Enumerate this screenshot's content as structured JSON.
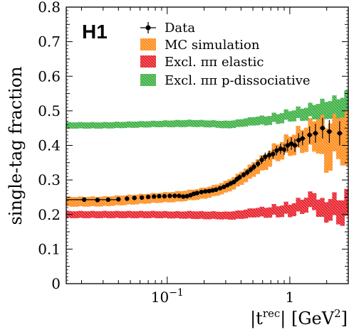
{
  "chart_data": {
    "type": "scatter",
    "title": "H1",
    "xlabel_parts": [
      "|t",
      "rec",
      "| [GeV",
      "2",
      "]"
    ],
    "ylabel": "single-tag fraction",
    "xscale": "log",
    "xlim": [
      0.015,
      3.0
    ],
    "ylim": [
      0,
      0.8
    ],
    "yticks": [
      "0",
      "0.1",
      "0.2",
      "0.3",
      "0.4",
      "0.5",
      "0.6",
      "0.7",
      "0.8"
    ],
    "xticks": [
      {
        "value": 0.1,
        "base": "10",
        "exp": "−1"
      },
      {
        "value": 1.0,
        "base": "1",
        "exp": ""
      }
    ],
    "grid": false,
    "legend_position": "top-right",
    "legend": [
      {
        "label": "Data",
        "kind": "marker",
        "color": "#000000"
      },
      {
        "label": "MC simulation",
        "kind": "band",
        "color": "#ff8c1a"
      },
      {
        "label": "Excl. ππ elastic",
        "kind": "band",
        "color": "#e8202a"
      },
      {
        "label": "Excl. ππ p-dissociative",
        "kind": "band",
        "color": "#3cb043"
      }
    ],
    "series": [
      {
        "name": "Data",
        "x": [
          0.021,
          0.027,
          0.033,
          0.04,
          0.047,
          0.054,
          0.062,
          0.07,
          0.078,
          0.086,
          0.095,
          0.105,
          0.115,
          0.125,
          0.135,
          0.145,
          0.155,
          0.165,
          0.175,
          0.19,
          0.205,
          0.22,
          0.235,
          0.25,
          0.27,
          0.29,
          0.31,
          0.33,
          0.35,
          0.37,
          0.39,
          0.42,
          0.45,
          0.48,
          0.51,
          0.55,
          0.59,
          0.63,
          0.68,
          0.73,
          0.78,
          0.84,
          0.9,
          0.96,
          1.03,
          1.1,
          1.18,
          1.27,
          1.45,
          1.62,
          1.85,
          2.1,
          2.55
        ],
        "y": [
          0.243,
          0.242,
          0.243,
          0.244,
          0.246,
          0.248,
          0.249,
          0.251,
          0.252,
          0.253,
          0.253,
          0.254,
          0.254,
          0.254,
          0.252,
          0.253,
          0.256,
          0.26,
          0.262,
          0.265,
          0.267,
          0.268,
          0.27,
          0.272,
          0.276,
          0.28,
          0.285,
          0.29,
          0.294,
          0.302,
          0.308,
          0.315,
          0.322,
          0.33,
          0.338,
          0.347,
          0.358,
          0.367,
          0.372,
          0.375,
          0.385,
          0.39,
          0.388,
          0.4,
          0.405,
          0.4,
          0.415,
          0.42,
          0.43,
          0.435,
          0.45,
          0.44,
          0.435
        ],
        "yerr": [
          0.004,
          0.004,
          0.004,
          0.004,
          0.004,
          0.004,
          0.004,
          0.004,
          0.004,
          0.004,
          0.004,
          0.004,
          0.004,
          0.004,
          0.004,
          0.004,
          0.004,
          0.004,
          0.004,
          0.005,
          0.005,
          0.005,
          0.005,
          0.005,
          0.006,
          0.006,
          0.006,
          0.007,
          0.007,
          0.008,
          0.008,
          0.008,
          0.009,
          0.009,
          0.01,
          0.01,
          0.012,
          0.012,
          0.013,
          0.013,
          0.014,
          0.015,
          0.016,
          0.017,
          0.018,
          0.019,
          0.02,
          0.02,
          0.025,
          0.027,
          0.03,
          0.033,
          0.035
        ],
        "color": "#000000"
      },
      {
        "name": "MC simulation",
        "x": [
          0.015,
          0.03,
          0.05,
          0.08,
          0.12,
          0.16,
          0.2,
          0.25,
          0.3,
          0.35,
          0.4,
          0.45,
          0.5,
          0.6,
          0.7,
          0.8,
          0.9,
          1.0,
          1.1,
          1.2,
          1.3,
          1.4,
          1.5,
          1.6,
          1.7,
          1.8,
          1.9,
          2.0,
          2.2,
          2.4,
          2.6,
          2.8,
          3.0
        ],
        "y": [
          0.237,
          0.238,
          0.243,
          0.248,
          0.252,
          0.257,
          0.262,
          0.27,
          0.28,
          0.292,
          0.305,
          0.318,
          0.33,
          0.35,
          0.37,
          0.385,
          0.395,
          0.405,
          0.41,
          0.42,
          0.42,
          0.43,
          0.43,
          0.44,
          0.44,
          0.42,
          0.41,
          0.4,
          0.42,
          0.45,
          0.47,
          0.41,
          0.4
        ],
        "half_width": [
          0.014,
          0.014,
          0.014,
          0.014,
          0.015,
          0.015,
          0.016,
          0.016,
          0.017,
          0.018,
          0.019,
          0.02,
          0.021,
          0.022,
          0.023,
          0.024,
          0.026,
          0.028,
          0.03,
          0.032,
          0.034,
          0.036,
          0.04,
          0.045,
          0.05,
          0.055,
          0.06,
          0.065,
          0.07,
          0.075,
          0.08,
          0.085,
          0.09
        ],
        "color": "#ff8c1a"
      },
      {
        "name": "Excl. ππ elastic",
        "x": [
          0.015,
          0.03,
          0.05,
          0.08,
          0.12,
          0.16,
          0.2,
          0.25,
          0.3,
          0.35,
          0.4,
          0.45,
          0.5,
          0.6,
          0.7,
          0.8,
          0.9,
          1.0,
          1.1,
          1.2,
          1.3,
          1.4,
          1.5,
          1.6,
          1.7,
          1.8,
          1.9,
          2.0,
          2.2,
          2.4,
          2.6,
          2.8,
          3.0
        ],
        "y": [
          0.2,
          0.2,
          0.2,
          0.2,
          0.199,
          0.199,
          0.198,
          0.198,
          0.197,
          0.198,
          0.2,
          0.203,
          0.205,
          0.208,
          0.21,
          0.212,
          0.215,
          0.215,
          0.22,
          0.225,
          0.23,
          0.235,
          0.24,
          0.245,
          0.225,
          0.215,
          0.21,
          0.215,
          0.225,
          0.22,
          0.21,
          0.22,
          0.23
        ],
        "half_width": [
          0.01,
          0.01,
          0.01,
          0.01,
          0.01,
          0.011,
          0.011,
          0.011,
          0.011,
          0.012,
          0.012,
          0.013,
          0.013,
          0.014,
          0.015,
          0.016,
          0.017,
          0.018,
          0.019,
          0.02,
          0.021,
          0.022,
          0.023,
          0.025,
          0.025,
          0.027,
          0.028,
          0.03,
          0.032,
          0.034,
          0.036,
          0.038,
          0.04
        ],
        "color": "#e8202a"
      },
      {
        "name": "Excl. ππ p-dissociative",
        "x": [
          0.015,
          0.03,
          0.05,
          0.08,
          0.12,
          0.16,
          0.2,
          0.25,
          0.3,
          0.35,
          0.4,
          0.45,
          0.5,
          0.6,
          0.7,
          0.8,
          0.9,
          1.0,
          1.1,
          1.2,
          1.3,
          1.4,
          1.5,
          1.6,
          1.7,
          1.8,
          1.9,
          2.0,
          2.2,
          2.4,
          2.6,
          2.8,
          3.0
        ],
        "y": [
          0.458,
          0.458,
          0.46,
          0.462,
          0.463,
          0.464,
          0.463,
          0.462,
          0.46,
          0.462,
          0.465,
          0.468,
          0.47,
          0.473,
          0.476,
          0.48,
          0.484,
          0.488,
          0.49,
          0.492,
          0.494,
          0.496,
          0.5,
          0.502,
          0.504,
          0.505,
          0.506,
          0.508,
          0.51,
          0.512,
          0.515,
          0.52,
          0.525
        ],
        "half_width": [
          0.009,
          0.009,
          0.009,
          0.009,
          0.01,
          0.01,
          0.01,
          0.01,
          0.011,
          0.011,
          0.011,
          0.012,
          0.012,
          0.013,
          0.013,
          0.014,
          0.015,
          0.015,
          0.016,
          0.017,
          0.018,
          0.019,
          0.02,
          0.021,
          0.022,
          0.023,
          0.024,
          0.025,
          0.026,
          0.027,
          0.028,
          0.029,
          0.03
        ],
        "color": "#3cb043"
      }
    ]
  }
}
